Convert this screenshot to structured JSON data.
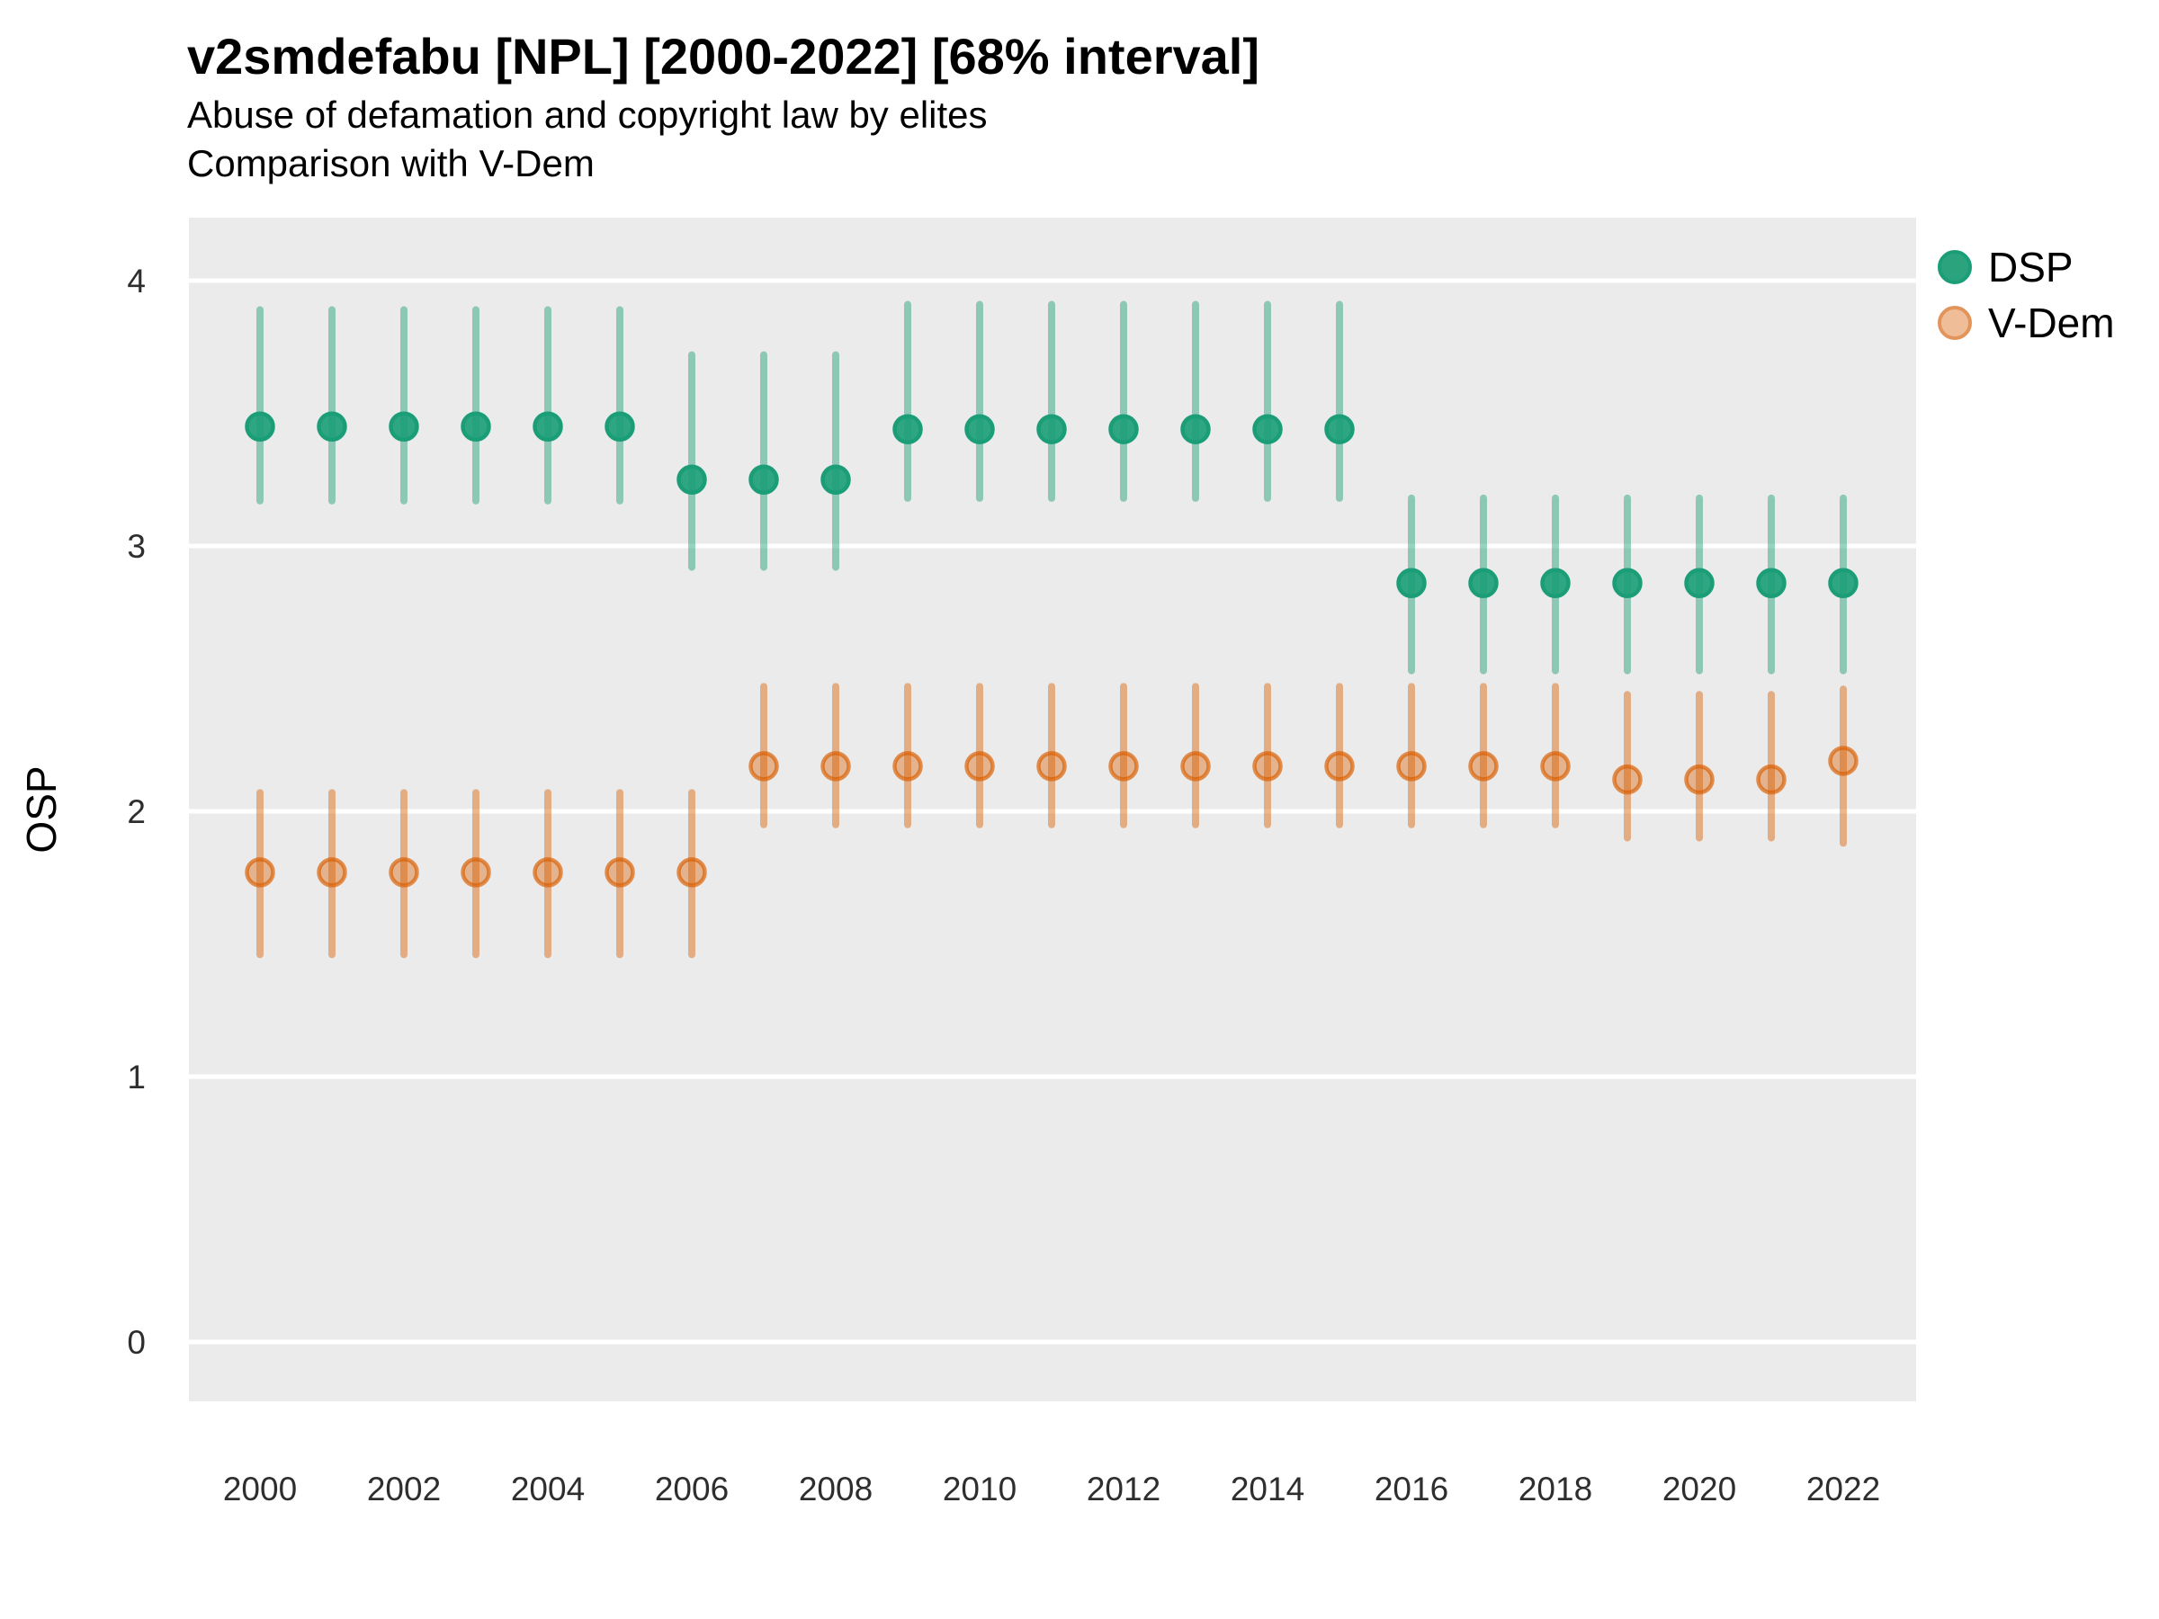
{
  "header": {
    "title": "v2smdefabu [NPL] [2000-2022] [68% interval]",
    "subtitle": "Abuse of defamation and copyright law by elites",
    "comparison_note": "Comparison with V-Dem"
  },
  "y_axis": {
    "title": "OSP",
    "tick_labels": [
      "0",
      "1",
      "2",
      "3",
      "4"
    ],
    "ticks": [
      0,
      1,
      2,
      3,
      4
    ]
  },
  "x_axis": {
    "ticks": [
      2000,
      2002,
      2004,
      2006,
      2008,
      2010,
      2012,
      2014,
      2016,
      2018,
      2020,
      2022
    ]
  },
  "legend": {
    "position": "right",
    "items": [
      {
        "label": "DSP",
        "swatch_fill": "#2BA47D",
        "swatch_stroke": "#1B9E77"
      },
      {
        "label": "V-Dem",
        "swatch_fill": "#EFBE98",
        "swatch_stroke": "#E2945B"
      }
    ]
  },
  "colors": {
    "panel_bg": "#EBEBEB",
    "gridline": "#FFFFFF",
    "dsp_base": "#1B9E77",
    "vdem_base": "#D95F02",
    "text": "#000000",
    "tick_text": "#2E2E2E"
  },
  "chart_data": {
    "type": "scatter",
    "mark": "pointrange (dot = point estimate, vertical bar = 68% credible interval)",
    "title": "v2smdefabu [NPL] [2000-2022] [68% interval]",
    "subtitle": "Abuse of defamation and copyright law by elites",
    "note": "Comparison with V-Dem",
    "xlabel": "",
    "ylabel": "OSP",
    "xlim": [
      1999,
      2023
    ],
    "ylim": [
      -0.23,
      4.24
    ],
    "grid": "horizontal-only",
    "legend_position": "right",
    "point_format": [
      "year",
      "lo",
      "est",
      "hi"
    ],
    "series": [
      {
        "name": "DSP",
        "base_color": "#1B9E77",
        "bar_color": "rgba(27,158,119,0.45)",
        "dot_fill": "rgba(27,158,119,0.9)",
        "dot_stroke": "rgba(27,158,119,1)",
        "points": [
          [
            2000,
            3.17,
            3.45,
            3.89
          ],
          [
            2001,
            3.17,
            3.45,
            3.89
          ],
          [
            2002,
            3.17,
            3.45,
            3.89
          ],
          [
            2003,
            3.17,
            3.45,
            3.89
          ],
          [
            2004,
            3.17,
            3.45,
            3.89
          ],
          [
            2005,
            3.17,
            3.45,
            3.89
          ],
          [
            2006,
            2.92,
            3.25,
            3.72
          ],
          [
            2007,
            2.92,
            3.25,
            3.72
          ],
          [
            2008,
            2.92,
            3.25,
            3.72
          ],
          [
            2009,
            3.18,
            3.44,
            3.91
          ],
          [
            2010,
            3.18,
            3.44,
            3.91
          ],
          [
            2011,
            3.18,
            3.44,
            3.91
          ],
          [
            2012,
            3.18,
            3.44,
            3.91
          ],
          [
            2013,
            3.18,
            3.44,
            3.91
          ],
          [
            2014,
            3.18,
            3.44,
            3.91
          ],
          [
            2015,
            3.18,
            3.44,
            3.91
          ],
          [
            2016,
            2.53,
            2.86,
            3.18
          ],
          [
            2017,
            2.53,
            2.86,
            3.18
          ],
          [
            2018,
            2.53,
            2.86,
            3.18
          ],
          [
            2019,
            2.53,
            2.86,
            3.18
          ],
          [
            2020,
            2.53,
            2.86,
            3.18
          ],
          [
            2021,
            2.53,
            2.86,
            3.18
          ],
          [
            2022,
            2.53,
            2.86,
            3.18
          ]
        ]
      },
      {
        "name": "V-Dem",
        "base_color": "#D95F02",
        "bar_color": "rgba(217,95,2,0.45)",
        "dot_fill": "rgba(217,95,2,0.4)",
        "dot_stroke": "rgba(217,95,2,0.68)",
        "points": [
          [
            2000,
            1.46,
            1.77,
            2.07
          ],
          [
            2001,
            1.46,
            1.77,
            2.07
          ],
          [
            2002,
            1.46,
            1.77,
            2.07
          ],
          [
            2003,
            1.46,
            1.77,
            2.07
          ],
          [
            2004,
            1.46,
            1.77,
            2.07
          ],
          [
            2005,
            1.46,
            1.77,
            2.07
          ],
          [
            2006,
            1.46,
            1.77,
            2.07
          ],
          [
            2007,
            1.95,
            2.17,
            2.47
          ],
          [
            2008,
            1.95,
            2.17,
            2.47
          ],
          [
            2009,
            1.95,
            2.17,
            2.47
          ],
          [
            2010,
            1.95,
            2.17,
            2.47
          ],
          [
            2011,
            1.95,
            2.17,
            2.47
          ],
          [
            2012,
            1.95,
            2.17,
            2.47
          ],
          [
            2013,
            1.95,
            2.17,
            2.47
          ],
          [
            2014,
            1.95,
            2.17,
            2.47
          ],
          [
            2015,
            1.95,
            2.17,
            2.47
          ],
          [
            2016,
            1.95,
            2.17,
            2.47
          ],
          [
            2017,
            1.95,
            2.17,
            2.47
          ],
          [
            2018,
            1.95,
            2.17,
            2.47
          ],
          [
            2019,
            1.9,
            2.12,
            2.44
          ],
          [
            2020,
            1.9,
            2.12,
            2.44
          ],
          [
            2021,
            1.9,
            2.12,
            2.44
          ],
          [
            2022,
            1.88,
            2.19,
            2.46
          ]
        ]
      }
    ]
  }
}
